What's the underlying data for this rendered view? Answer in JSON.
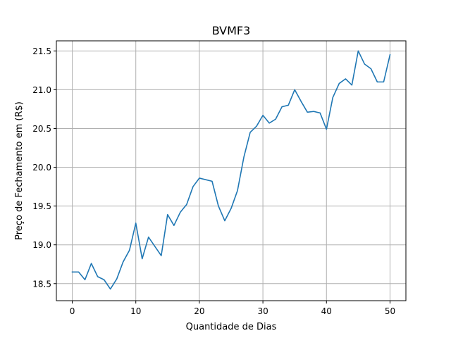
{
  "chart_data": {
    "type": "line",
    "title": "BVMF3",
    "xlabel": "Quantidade de Dias",
    "ylabel": "Preço de Fechamento em (R$)",
    "xlim": [
      -2.5,
      52.5
    ],
    "ylim": [
      18.28,
      21.63
    ],
    "grid": true,
    "xticks": [
      0,
      10,
      20,
      30,
      40,
      50
    ],
    "yticks": [
      18.5,
      19.0,
      19.5,
      20.0,
      20.5,
      21.0,
      21.5
    ],
    "xtick_labels": [
      "0",
      "10",
      "20",
      "30",
      "40",
      "50"
    ],
    "ytick_labels": [
      "18.5",
      "19.0",
      "19.5",
      "20.0",
      "20.5",
      "21.0",
      "21.5"
    ],
    "series": [
      {
        "color": "#1f77b4",
        "x": [
          0,
          1,
          2,
          3,
          4,
          5,
          6,
          7,
          8,
          9,
          10,
          11,
          12,
          13,
          14,
          15,
          16,
          17,
          18,
          19,
          20,
          21,
          22,
          23,
          24,
          25,
          26,
          27,
          28,
          29,
          30,
          31,
          32,
          33,
          34,
          35,
          36,
          37,
          38,
          39,
          40,
          41,
          42,
          43,
          44,
          45,
          46,
          47,
          48,
          49,
          50
        ],
        "values": [
          18.65,
          18.65,
          18.55,
          18.76,
          18.59,
          18.55,
          18.43,
          18.56,
          18.78,
          18.93,
          19.28,
          18.82,
          19.1,
          18.98,
          18.86,
          19.39,
          19.25,
          19.42,
          19.52,
          19.75,
          19.86,
          19.84,
          19.82,
          19.5,
          19.31,
          19.47,
          19.7,
          20.13,
          20.45,
          20.53,
          20.67,
          20.57,
          20.62,
          20.78,
          20.8,
          21.0,
          20.85,
          20.71,
          20.72,
          20.7,
          20.49,
          20.9,
          21.08,
          21.14,
          21.06,
          21.5,
          21.33,
          21.27,
          21.1,
          21.1,
          21.45
        ]
      }
    ]
  }
}
